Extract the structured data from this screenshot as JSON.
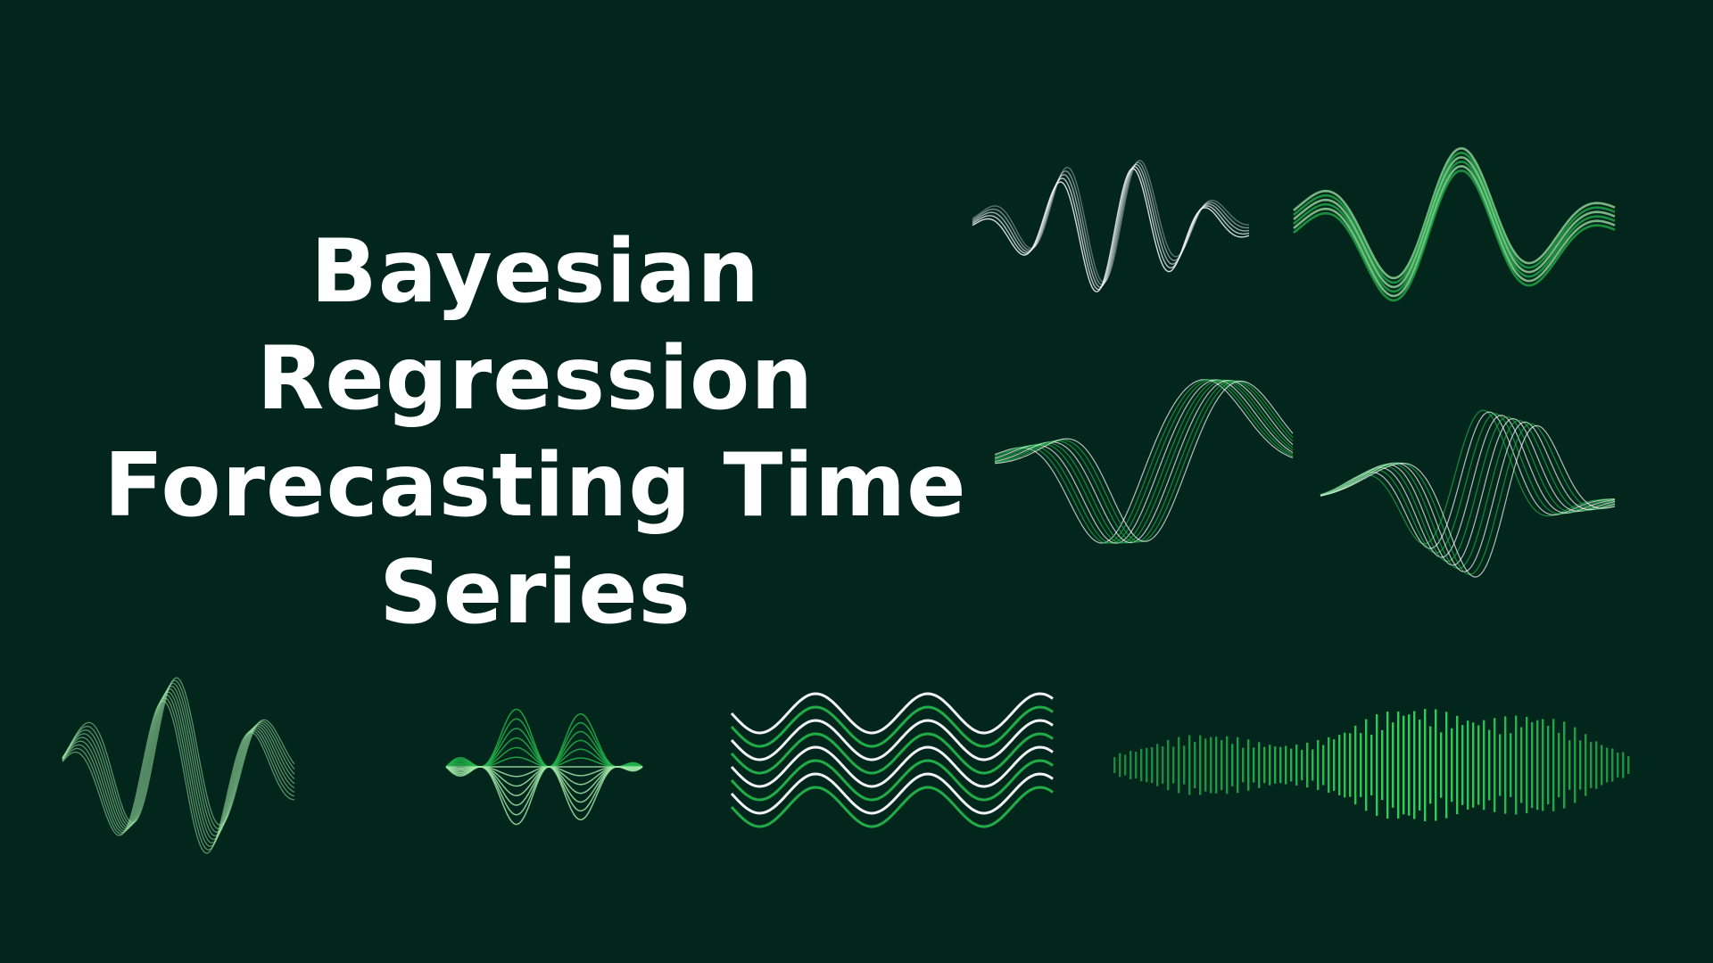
{
  "title": {
    "lines": [
      "Bayesian Regression",
      "Forecasting Time",
      "Series"
    ]
  },
  "colors": {
    "background": "#03261c",
    "title": "#ffffff",
    "wave_green": "#22b44a",
    "wave_bright": "#39d45b",
    "wave_light": "#9fe6a6",
    "wave_white": "#ffffff"
  },
  "decorations": [
    "wave-top-left-icon",
    "wave-top-right-icon",
    "wave-mid-left-icon",
    "wave-mid-right-icon",
    "wave-bottom-1-icon",
    "wave-bottom-2-icon",
    "wave-bottom-3-icon",
    "audio-spectrum-icon"
  ]
}
